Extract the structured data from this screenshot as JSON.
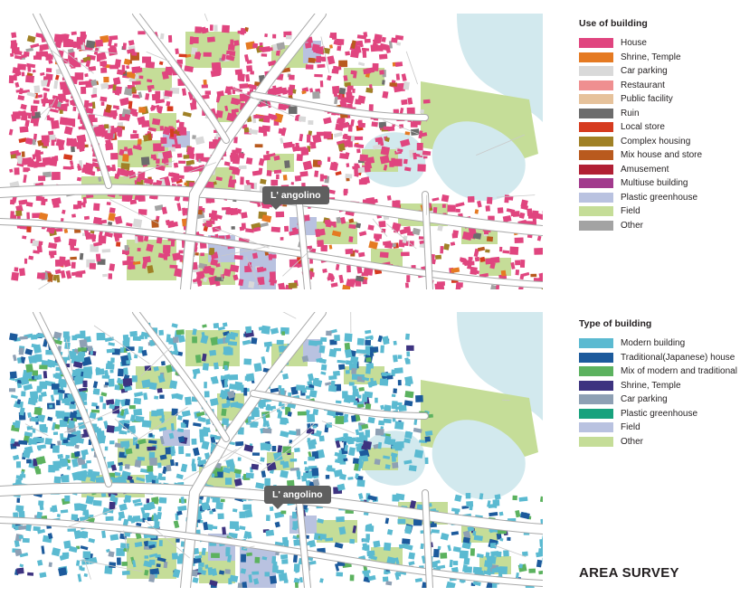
{
  "landmark_label": "L' angolino",
  "page_title": "AREA SURVEY",
  "legends": {
    "use": {
      "title": "Use of building",
      "items": [
        {
          "label": "House",
          "color": "#e0457f"
        },
        {
          "label": "Shrine, Temple",
          "color": "#e57a22"
        },
        {
          "label": "Car parking",
          "color": "#d9d9d9"
        },
        {
          "label": "Restaurant",
          "color": "#ef8f90"
        },
        {
          "label": "Public facility",
          "color": "#e6c29b"
        },
        {
          "label": "Ruin",
          "color": "#6c6c6c"
        },
        {
          "label": "Local store",
          "color": "#d63b1f"
        },
        {
          "label": "Complex housing",
          "color": "#a08126"
        },
        {
          "label": "Mix house and store",
          "color": "#b95a1e"
        },
        {
          "label": "Amusement",
          "color": "#b11f34"
        },
        {
          "label": "Multiuse building",
          "color": "#a23a8d"
        },
        {
          "label": "Plastic greenhouse",
          "color": "#b9c2e0"
        },
        {
          "label": "Field",
          "color": "#c5dd98"
        },
        {
          "label": "Other",
          "color": "#a3a3a3"
        }
      ]
    },
    "type": {
      "title": "Type of building",
      "items": [
        {
          "label": "Modern building",
          "color": "#5bbad1"
        },
        {
          "label": "Traditional(Japanese) house",
          "color": "#1c5a9c"
        },
        {
          "label": "Mix of modern and traditional",
          "color": "#5cb25f"
        },
        {
          "label": "Shrine, Temple",
          "color": "#3d3380"
        },
        {
          "label": "Car parking",
          "color": "#8ea0b4"
        },
        {
          "label": "Plastic greenhouse",
          "color": "#17a27d"
        },
        {
          "label": "Field",
          "color": "#b9c2e0"
        },
        {
          "label": "Other",
          "color": "#c5dd98"
        }
      ]
    }
  },
  "map_colors": {
    "water": "#d2e9ee",
    "road": "#ffffff",
    "road_casing": "#a9a9a9",
    "field": "#c5dd98",
    "greenhouse": "#b9c2e0",
    "parking": "#d9d9d9"
  }
}
